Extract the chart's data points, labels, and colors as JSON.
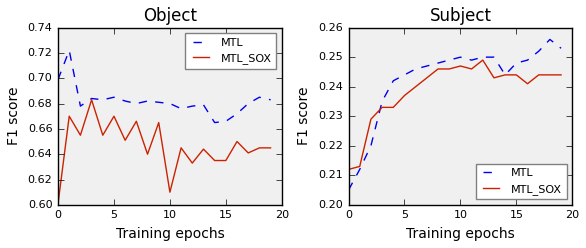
{
  "obj_mtl_x": [
    0,
    1,
    2,
    3,
    4,
    5,
    6,
    7,
    8,
    9,
    10,
    11,
    12,
    13,
    14,
    15,
    16,
    17,
    18,
    19
  ],
  "obj_mtl_y": [
    0.699,
    0.722,
    0.678,
    0.684,
    0.683,
    0.685,
    0.682,
    0.68,
    0.682,
    0.681,
    0.68,
    0.676,
    0.678,
    0.679,
    0.665,
    0.666,
    0.672,
    0.68,
    0.685,
    0.683
  ],
  "obj_sox_x": [
    0,
    1,
    2,
    3,
    4,
    5,
    6,
    7,
    8,
    9,
    10,
    11,
    12,
    13,
    14,
    15,
    16,
    17,
    18,
    19
  ],
  "obj_sox_y": [
    0.601,
    0.67,
    0.655,
    0.683,
    0.655,
    0.67,
    0.651,
    0.666,
    0.64,
    0.665,
    0.61,
    0.645,
    0.633,
    0.644,
    0.635,
    0.635,
    0.65,
    0.641,
    0.645,
    0.645
  ],
  "sub_mtl_x": [
    0,
    1,
    2,
    3,
    4,
    5,
    6,
    7,
    8,
    9,
    10,
    11,
    12,
    13,
    14,
    15,
    16,
    17,
    18,
    19
  ],
  "sub_mtl_y": [
    0.205,
    0.212,
    0.22,
    0.235,
    0.242,
    0.244,
    0.246,
    0.247,
    0.248,
    0.249,
    0.25,
    0.249,
    0.25,
    0.25,
    0.244,
    0.248,
    0.249,
    0.252,
    0.256,
    0.253
  ],
  "sub_sox_x": [
    0,
    1,
    2,
    3,
    4,
    5,
    6,
    7,
    8,
    9,
    10,
    11,
    12,
    13,
    14,
    15,
    16,
    17,
    18,
    19
  ],
  "sub_sox_y": [
    0.212,
    0.213,
    0.229,
    0.233,
    0.233,
    0.237,
    0.24,
    0.243,
    0.246,
    0.246,
    0.247,
    0.246,
    0.249,
    0.243,
    0.244,
    0.244,
    0.241,
    0.244,
    0.244,
    0.244
  ],
  "obj_title": "Object",
  "sub_title": "Subject",
  "xlabel": "Training epochs",
  "ylabel": "F1 score",
  "obj_ylim": [
    0.6,
    0.74
  ],
  "sub_ylim": [
    0.2,
    0.26
  ],
  "obj_yticks": [
    0.6,
    0.62,
    0.64,
    0.66,
    0.68,
    0.7,
    0.72,
    0.74
  ],
  "sub_yticks": [
    0.2,
    0.21,
    0.22,
    0.23,
    0.24,
    0.25,
    0.26
  ],
  "xlim": [
    0,
    20
  ],
  "xticks": [
    0,
    5,
    10,
    15,
    20
  ],
  "mtl_color": "#0000ee",
  "sox_color": "#cc2200",
  "legend_mtl": "MTL",
  "legend_sox": "MTL_SOX",
  "bg_color": "#f0f0f0",
  "fig_bg": "#ffffff",
  "title_fontsize": 12,
  "label_fontsize": 10,
  "tick_fontsize": 8,
  "legend_fontsize": 8,
  "linewidth": 1.0,
  "obj_legend_loc": "upper right",
  "sub_legend_loc": "lower right"
}
